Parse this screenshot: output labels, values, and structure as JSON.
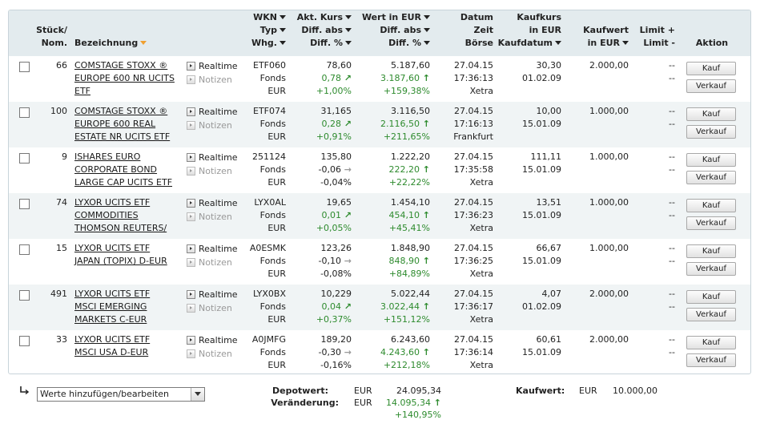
{
  "header": {
    "qty": [
      "Stück/",
      "Nom."
    ],
    "name": "Bezeichnung",
    "wkn": [
      "WKN",
      "Typ",
      "Whg."
    ],
    "kurs": [
      "Akt. Kurs",
      "Diff. abs",
      "Diff. %"
    ],
    "wert": [
      "Wert in EUR",
      "Diff. abs",
      "Diff. %"
    ],
    "datum": [
      "Datum",
      "Zeit",
      "Börse"
    ],
    "kaufkurs": [
      "Kaufkurs",
      "in EUR",
      "Kaufdatum"
    ],
    "kaufwert": [
      "Kaufwert",
      "in EUR"
    ],
    "limit": [
      "Limit +",
      "Limit -"
    ],
    "aktion": "Aktion"
  },
  "labels": {
    "realtime": "Realtime",
    "notizen": "Notizen",
    "kauf": "Kauf",
    "verkauf": "Verkauf"
  },
  "rows": [
    {
      "qty": "66",
      "name": [
        "COMSTAGE STOXX ®",
        "EUROPE 600 NR UCITS",
        "ETF"
      ],
      "wkn": "ETF060",
      "typ": "Fonds",
      "whg": "EUR",
      "kurs": "78,60",
      "kdiff": "0,78",
      "kpct": "+1,00%",
      "wert": "5.187,60",
      "wdiff": "3.187,60",
      "wpct": "+159,38%",
      "datum": "27.04.15",
      "zeit": "17:36:13",
      "boerse": "Xetra",
      "kaufkurs": "30,30",
      "kaufdatum": "01.02.09",
      "kaufwert": "2.000,00",
      "limit1": "--",
      "limit2": "--"
    },
    {
      "qty": "100",
      "name": [
        "COMSTAGE STOXX ®",
        "EUROPE 600 REAL",
        "ESTATE NR UCITS ETF"
      ],
      "wkn": "ETF074",
      "typ": "Fonds",
      "whg": "EUR",
      "kurs": "31,165",
      "kdiff": "0,28",
      "kpct": "+0,91%",
      "wert": "3.116,50",
      "wdiff": "2.116,50",
      "wpct": "+211,65%",
      "datum": "27.04.15",
      "zeit": "17:16:13",
      "boerse": "Frankfurt",
      "kaufkurs": "10,00",
      "kaufdatum": "15.01.09",
      "kaufwert": "1.000,00",
      "limit1": "--",
      "limit2": "--"
    },
    {
      "qty": "9",
      "name": [
        "ISHARES EURO",
        "CORPORATE BOND",
        "LARGE CAP UCITS ETF"
      ],
      "wkn": "251124",
      "typ": "Fonds",
      "whg": "EUR",
      "kurs": "135,80",
      "kdiff": "-0,06",
      "kpct": "-0,04%",
      "wert": "1.222,20",
      "wdiff": "222,20",
      "wpct": "+22,22%",
      "datum": "27.04.15",
      "zeit": "17:35:58",
      "boerse": "Xetra",
      "kaufkurs": "111,11",
      "kaufdatum": "15.01.09",
      "kaufwert": "1.000,00",
      "limit1": "--",
      "limit2": "--"
    },
    {
      "qty": "74",
      "name": [
        "LYXOR UCITS ETF",
        "COMMODITIES",
        "THOMSON REUTERS/"
      ],
      "wkn": "LYX0AL",
      "typ": "Fonds",
      "whg": "EUR",
      "kurs": "19,65",
      "kdiff": "0,01",
      "kpct": "+0,05%",
      "wert": "1.454,10",
      "wdiff": "454,10",
      "wpct": "+45,41%",
      "datum": "27.04.15",
      "zeit": "17:36:23",
      "boerse": "Xetra",
      "kaufkurs": "13,51",
      "kaufdatum": "15.01.09",
      "kaufwert": "1.000,00",
      "limit1": "--",
      "limit2": "--"
    },
    {
      "qty": "15",
      "name": [
        "LYXOR UCITS ETF",
        "JAPAN (TOPIX) D-EUR",
        ""
      ],
      "wkn": "A0ESMK",
      "typ": "Fonds",
      "whg": "EUR",
      "kurs": "123,26",
      "kdiff": "-0,10",
      "kpct": "-0,08%",
      "wert": "1.848,90",
      "wdiff": "848,90",
      "wpct": "+84,89%",
      "datum": "27.04.15",
      "zeit": "17:36:25",
      "boerse": "Xetra",
      "kaufkurs": "66,67",
      "kaufdatum": "15.01.09",
      "kaufwert": "1.000,00",
      "limit1": "--",
      "limit2": "--"
    },
    {
      "qty": "491",
      "name": [
        "LYXOR UCITS ETF",
        "MSCI EMERGING",
        "MARKETS C-EUR"
      ],
      "wkn": "LYX0BX",
      "typ": "Fonds",
      "whg": "EUR",
      "kurs": "10,229",
      "kdiff": "0,04",
      "kpct": "+0,37%",
      "wert": "5.022,44",
      "wdiff": "3.022,44",
      "wpct": "+151,12%",
      "datum": "27.04.15",
      "zeit": "17:36:17",
      "boerse": "Xetra",
      "kaufkurs": "4,07",
      "kaufdatum": "01.02.09",
      "kaufwert": "2.000,00",
      "limit1": "--",
      "limit2": "--"
    },
    {
      "qty": "33",
      "name": [
        "LYXOR UCITS ETF",
        "MSCI USA D-EUR",
        ""
      ],
      "wkn": "A0JMFG",
      "typ": "Fonds",
      "whg": "EUR",
      "kurs": "189,20",
      "kdiff": "-0,30",
      "kpct": "-0,16%",
      "wert": "6.243,60",
      "wdiff": "4.243,60",
      "wpct": "+212,18%",
      "datum": "27.04.15",
      "zeit": "17:36:14",
      "boerse": "Xetra",
      "kaufkurs": "60,61",
      "kaufdatum": "15.01.09",
      "kaufwert": "2.000,00",
      "limit1": "--",
      "limit2": "--"
    }
  ],
  "footer": {
    "select_value": "Werte hinzufügen/bearbeiten",
    "depotwert_label": "Depotwert:",
    "depotwert_cur": "EUR",
    "depotwert": "24.095,34",
    "veraenderung_label": "Veränderung:",
    "veraenderung_cur": "EUR",
    "veraenderung": "14.095,34",
    "veraenderung_pct": "+140,95%",
    "kaufwert_label": "Kaufwert:",
    "kaufwert_cur": "EUR",
    "kaufwert": "10.000,00"
  },
  "colors": {
    "header_bg": "#e3ebee",
    "alt_row_bg": "#f0f4f5",
    "positive": "#2e8b2e",
    "sort_arrow": "#f0a030"
  }
}
